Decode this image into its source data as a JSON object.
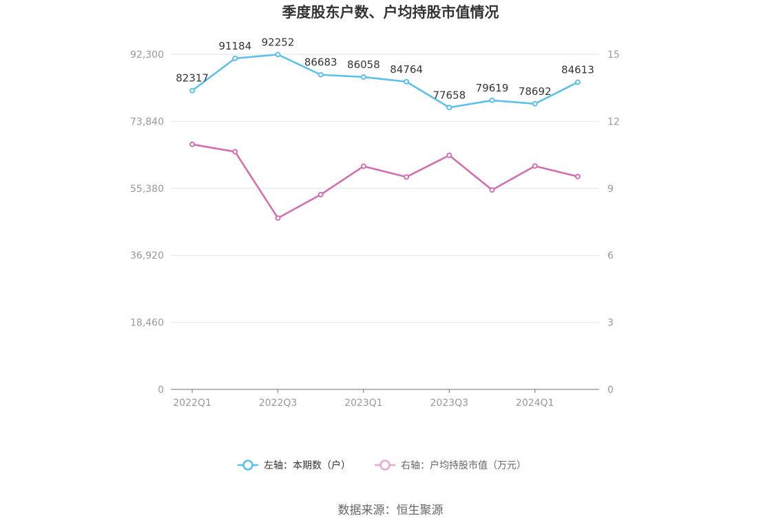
{
  "chart_data": {
    "type": "line",
    "title": "季度股东户数、户均持股市值情况",
    "categories": [
      "2022Q1",
      "2022Q2",
      "2022Q3",
      "2022Q4",
      "2023Q1",
      "2023Q2",
      "2023Q3",
      "2023Q4",
      "2024Q1",
      "2024Q2"
    ],
    "x_tick_labels": [
      "2022Q1",
      "2022Q3",
      "2023Q1",
      "2023Q3",
      "2024Q1"
    ],
    "left_axis": {
      "ylim": [
        0,
        92300
      ],
      "ticks": [
        "0",
        "18,460",
        "36,920",
        "55,380",
        "73,840",
        "92,300"
      ]
    },
    "right_axis": {
      "ylim": [
        0,
        15
      ],
      "ticks": [
        "0",
        "3",
        "6",
        "9",
        "12",
        "15"
      ]
    },
    "series": [
      {
        "name": "左轴：本期数（户）",
        "axis": "left",
        "color": "#5bc0eb",
        "values": [
          82317,
          91184,
          92252,
          86683,
          86058,
          84764,
          77658,
          79619,
          78692,
          84613
        ],
        "labels": [
          "82317",
          "91184",
          "92252",
          "86683",
          "86058",
          "84764",
          "77658",
          "79619",
          "78692",
          "84613"
        ]
      },
      {
        "name": "右轴：户均持股市值（万元）",
        "axis": "right",
        "color": "#d36fb1",
        "values": [
          10.97,
          10.64,
          7.67,
          8.72,
          9.99,
          9.51,
          10.48,
          8.93,
          10.0,
          9.53
        ]
      }
    ],
    "grid": true,
    "legend": "bottom-center",
    "source": "数据来源：恒生聚源"
  }
}
